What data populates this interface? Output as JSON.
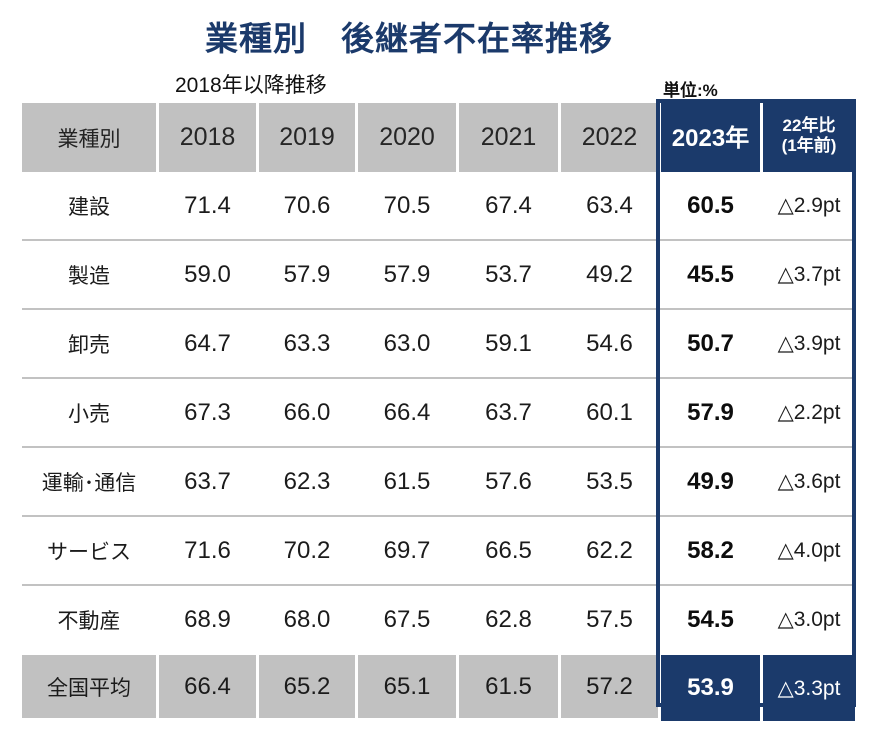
{
  "title": "業種別　後継者不在率推移",
  "subtitle": "2018年以降推移",
  "unit_label": "単位:%",
  "colors": {
    "navy": "#1b3a6b",
    "header_gray": "#c1c1c1",
    "divider": "#c2c2c2"
  },
  "table": {
    "header": {
      "industry": "業種別",
      "years": [
        "2018",
        "2019",
        "2020",
        "2021",
        "2022"
      ],
      "year_2023": "2023年",
      "cmp_line1": "22年比",
      "cmp_line2": "(1年前)"
    },
    "rows": [
      {
        "industry": "建設",
        "v": [
          "71.4",
          "70.6",
          "70.5",
          "67.4",
          "63.4"
        ],
        "v2023": "60.5",
        "cmp": "△2.9pt"
      },
      {
        "industry": "製造",
        "v": [
          "59.0",
          "57.9",
          "57.9",
          "53.7",
          "49.2"
        ],
        "v2023": "45.5",
        "cmp": "△3.7pt"
      },
      {
        "industry": "卸売",
        "v": [
          "64.7",
          "63.3",
          "63.0",
          "59.1",
          "54.6"
        ],
        "v2023": "50.7",
        "cmp": "△3.9pt"
      },
      {
        "industry": "小売",
        "v": [
          "67.3",
          "66.0",
          "66.4",
          "63.7",
          "60.1"
        ],
        "v2023": "57.9",
        "cmp": "△2.2pt"
      },
      {
        "industry": "運輸･通信",
        "v": [
          "63.7",
          "62.3",
          "61.5",
          "57.6",
          "53.5"
        ],
        "v2023": "49.9",
        "cmp": "△3.6pt"
      },
      {
        "industry": "サービス",
        "v": [
          "71.6",
          "70.2",
          "69.7",
          "66.5",
          "62.2"
        ],
        "v2023": "58.2",
        "cmp": "△4.0pt"
      },
      {
        "industry": "不動産",
        "v": [
          "68.9",
          "68.0",
          "67.5",
          "62.8",
          "57.5"
        ],
        "v2023": "54.5",
        "cmp": "△3.0pt"
      }
    ],
    "footer": {
      "industry": "全国平均",
      "v": [
        "66.4",
        "65.2",
        "65.1",
        "61.5",
        "57.2"
      ],
      "v2023": "53.9",
      "cmp": "△3.3pt"
    }
  },
  "chart_data": {
    "type": "table",
    "title": "業種別 後継者不在率推移",
    "subtitle": "2018年以降推移",
    "unit": "%",
    "columns": [
      "業種別",
      "2018",
      "2019",
      "2020",
      "2021",
      "2022",
      "2023年",
      "22年比(1年前)"
    ],
    "series": [
      {
        "name": "建設",
        "values": [
          71.4,
          70.6,
          70.5,
          67.4,
          63.4,
          60.5
        ],
        "yoy_change_pt": -2.9
      },
      {
        "name": "製造",
        "values": [
          59.0,
          57.9,
          57.9,
          53.7,
          49.2,
          45.5
        ],
        "yoy_change_pt": -3.7
      },
      {
        "name": "卸売",
        "values": [
          64.7,
          63.3,
          63.0,
          59.1,
          54.6,
          50.7
        ],
        "yoy_change_pt": -3.9
      },
      {
        "name": "小売",
        "values": [
          67.3,
          66.0,
          66.4,
          63.7,
          60.1,
          57.9
        ],
        "yoy_change_pt": -2.2
      },
      {
        "name": "運輸･通信",
        "values": [
          63.7,
          62.3,
          61.5,
          57.6,
          53.5,
          49.9
        ],
        "yoy_change_pt": -3.6
      },
      {
        "name": "サービス",
        "values": [
          71.6,
          70.2,
          69.7,
          66.5,
          62.2,
          58.2
        ],
        "yoy_change_pt": -4.0
      },
      {
        "name": "不動産",
        "values": [
          68.9,
          68.0,
          67.5,
          62.8,
          57.5,
          54.5
        ],
        "yoy_change_pt": -3.0
      },
      {
        "name": "全国平均",
        "values": [
          66.4,
          65.2,
          65.1,
          61.5,
          57.2,
          53.9
        ],
        "yoy_change_pt": -3.3
      }
    ],
    "x": [
      2018,
      2019,
      2020,
      2021,
      2022,
      2023
    ],
    "highlight_column": "2023"
  }
}
